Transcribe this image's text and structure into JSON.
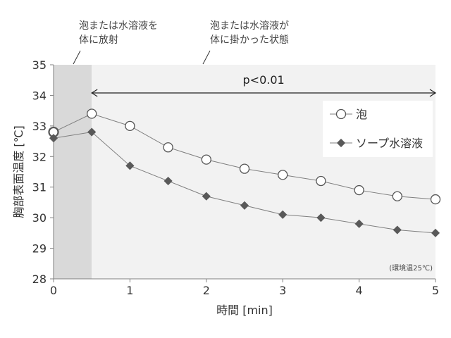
{
  "chart_data": {
    "type": "line",
    "x": [
      0,
      0.5,
      1,
      1.5,
      2,
      2.5,
      3,
      3.5,
      4,
      4.5,
      5
    ],
    "series": [
      {
        "name": "泡",
        "marker": "circle-open",
        "color": "#666666",
        "values": [
          32.8,
          33.4,
          33.0,
          32.3,
          31.9,
          31.6,
          31.4,
          31.2,
          30.9,
          30.7,
          30.6
        ]
      },
      {
        "name": "ソープ水溶液",
        "marker": "diamond-filled",
        "color": "#595959",
        "values": [
          32.6,
          32.8,
          31.7,
          31.2,
          30.7,
          30.4,
          30.1,
          30.0,
          29.8,
          29.6,
          29.5
        ]
      }
    ],
    "xlabel": "時間 [min]",
    "ylabel": "胸部表面温度 [℃]",
    "xlim": [
      0,
      5
    ],
    "ylim": [
      28,
      35
    ],
    "xticks": [
      "0",
      "1",
      "2",
      "3",
      "4",
      "5"
    ],
    "yticks": [
      "28",
      "29",
      "30",
      "31",
      "32",
      "33",
      "34",
      "35"
    ],
    "grid": false,
    "legend_position": "top-right",
    "shaded_regions": [
      {
        "x_range": [
          0,
          0.5
        ],
        "color": "#d9d9d9"
      },
      {
        "x_range": [
          0.5,
          5
        ],
        "color": "#f2f2f2"
      }
    ],
    "annotations": {
      "phase1_lines": [
        "泡または水溶液を",
        "体に放射"
      ],
      "phase2_lines": [
        "泡または水溶液が",
        "体に掛かった状態"
      ],
      "significance": "p<0.01",
      "significance_range": [
        0.5,
        5
      ],
      "note": "(環境温25℃)"
    }
  }
}
